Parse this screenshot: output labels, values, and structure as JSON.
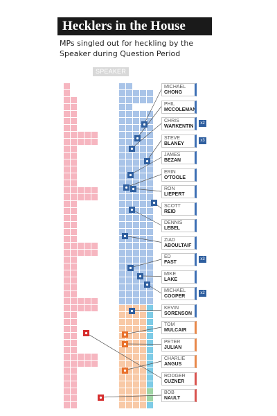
{
  "header": {
    "title": "Hecklers in the House",
    "subtitle": "MPs singled out for heckling by the Speaker during Question Period",
    "speaker_label": "SPEAKER"
  },
  "colors": {
    "opposition_seat": "#f6b6c0",
    "conservative_seat": "#a9c4e8",
    "ndp_seat": "#f8c9a6",
    "liberal_marker": "#d62f2f",
    "conservative_marker": "#2f5f9f",
    "ndp_marker": "#e8702a",
    "green_seat": "#9fd4a4",
    "bq_seat": "#7ecbe6"
  },
  "mps": [
    {
      "first": "MICHAEL",
      "last": "CHONG",
      "party": "blue",
      "count": ""
    },
    {
      "first": "PHIL",
      "last": "McCOLEMAN",
      "party": "blue",
      "count": ""
    },
    {
      "first": "CHRIS",
      "last": "WARKENTIN",
      "party": "blue",
      "count": "x2"
    },
    {
      "first": "STEVE",
      "last": "BLANEY",
      "party": "blue",
      "count": "x3"
    },
    {
      "first": "JAMES",
      "last": "BEZAN",
      "party": "blue",
      "count": ""
    },
    {
      "first": "ERIN",
      "last": "O'TOOLE",
      "party": "blue",
      "count": ""
    },
    {
      "first": "RON",
      "last": "LIEPERT",
      "party": "blue",
      "count": ""
    },
    {
      "first": "SCOTT",
      "last": "REID",
      "party": "blue",
      "count": ""
    },
    {
      "first": "DENNIS",
      "last": "LEBEL",
      "party": "blue",
      "count": ""
    },
    {
      "first": "ZIAD",
      "last": "ABOULTAIF",
      "party": "blue",
      "count": ""
    },
    {
      "first": "ED",
      "last": "FAST",
      "party": "blue",
      "count": "x3"
    },
    {
      "first": "MIKE",
      "last": "LAKE",
      "party": "blue",
      "count": ""
    },
    {
      "first": "MICHAEL",
      "last": "COOPER",
      "party": "blue",
      "count": "x2"
    },
    {
      "first": "KEVIN",
      "last": "SORENSON",
      "party": "blue",
      "count": ""
    },
    {
      "first": "TOM",
      "last": "MULCAIR",
      "party": "orange",
      "count": ""
    },
    {
      "first": "PETER",
      "last": "JULIAN",
      "party": "orange",
      "count": ""
    },
    {
      "first": "CHARLIE",
      "last": "ANGUS",
      "party": "orange",
      "count": ""
    },
    {
      "first": "RODGER",
      "last": "CUZNER",
      "party": "red",
      "count": ""
    },
    {
      "first": "BOB",
      "last": "NAULT",
      "party": "red",
      "count": ""
    }
  ]
}
